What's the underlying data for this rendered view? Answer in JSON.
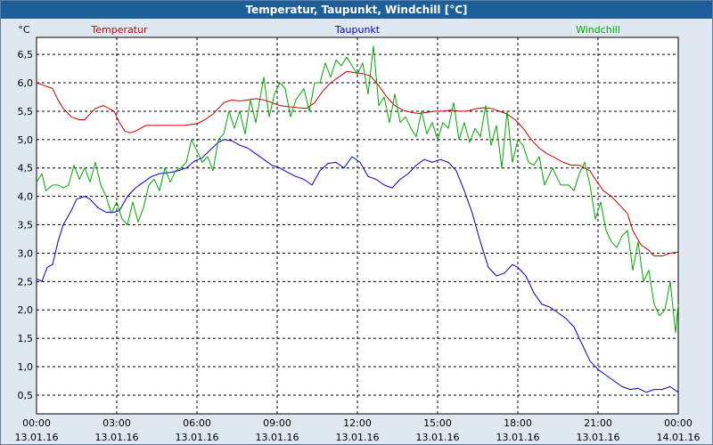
{
  "window": {
    "title": "Temperatur, Taupunkt, Windchill [°C]"
  },
  "chart_data": {
    "type": "line",
    "title": "Temperatur, Taupunkt, Windchill [°C]",
    "ylabel": "°C",
    "ylim": [
      0.17,
      6.8
    ],
    "yticks": [
      0.5,
      1.0,
      1.5,
      2.0,
      2.5,
      3.0,
      3.5,
      4.0,
      4.5,
      5.0,
      5.5,
      6.0,
      6.5
    ],
    "ytick_labels": [
      "0,5",
      "1,0",
      "1,5",
      "2,0",
      "2,5",
      "3,0",
      "3,5",
      "4,0",
      "4,5",
      "5,0",
      "5,5",
      "6,0",
      "6,5"
    ],
    "xlim": [
      0,
      24
    ],
    "xticks": [
      0,
      3,
      6,
      9,
      12,
      15,
      18,
      21,
      24
    ],
    "xtick_labels": [
      {
        "time": "00:00",
        "date": "13.01.16"
      },
      {
        "time": "03:00",
        "date": "13.01.16"
      },
      {
        "time": "06:00",
        "date": "13.01.16"
      },
      {
        "time": "09:00",
        "date": "13.01.16"
      },
      {
        "time": "12:00",
        "date": "13.01.16"
      },
      {
        "time": "15:00",
        "date": "13.01.16"
      },
      {
        "time": "18:00",
        "date": "13.01.16"
      },
      {
        "time": "21:00",
        "date": "13.01.16"
      },
      {
        "time": "00:00",
        "date": "14.01.16"
      }
    ],
    "grid": true,
    "legend_position": "top",
    "series": [
      {
        "name": "Temperatur",
        "color": "#cc0000",
        "points": [
          [
            0,
            6.0
          ],
          [
            0.3,
            5.95
          ],
          [
            0.6,
            5.9
          ],
          [
            0.8,
            5.7
          ],
          [
            1.0,
            5.55
          ],
          [
            1.3,
            5.4
          ],
          [
            1.6,
            5.35
          ],
          [
            1.8,
            5.35
          ],
          [
            2.0,
            5.45
          ],
          [
            2.2,
            5.55
          ],
          [
            2.5,
            5.6
          ],
          [
            2.7,
            5.55
          ],
          [
            2.9,
            5.5
          ],
          [
            3.1,
            5.3
          ],
          [
            3.3,
            5.15
          ],
          [
            3.5,
            5.12
          ],
          [
            3.7,
            5.15
          ],
          [
            3.9,
            5.2
          ],
          [
            4.1,
            5.25
          ],
          [
            4.5,
            5.25
          ],
          [
            5.0,
            5.25
          ],
          [
            5.5,
            5.25
          ],
          [
            6.0,
            5.28
          ],
          [
            6.3,
            5.35
          ],
          [
            6.6,
            5.45
          ],
          [
            6.8,
            5.55
          ],
          [
            7.0,
            5.65
          ],
          [
            7.3,
            5.7
          ],
          [
            7.6,
            5.68
          ],
          [
            7.9,
            5.7
          ],
          [
            8.2,
            5.72
          ],
          [
            8.5,
            5.7
          ],
          [
            8.8,
            5.65
          ],
          [
            9.1,
            5.6
          ],
          [
            9.4,
            5.58
          ],
          [
            9.8,
            5.56
          ],
          [
            10.1,
            5.55
          ],
          [
            10.4,
            5.65
          ],
          [
            10.7,
            5.85
          ],
          [
            11.0,
            6.0
          ],
          [
            11.3,
            6.1
          ],
          [
            11.6,
            6.2
          ],
          [
            11.9,
            6.18
          ],
          [
            12.2,
            6.16
          ],
          [
            12.5,
            6.12
          ],
          [
            12.8,
            5.95
          ],
          [
            13.1,
            5.75
          ],
          [
            13.4,
            5.6
          ],
          [
            13.7,
            5.52
          ],
          [
            14.0,
            5.48
          ],
          [
            14.3,
            5.46
          ],
          [
            14.6,
            5.48
          ],
          [
            14.9,
            5.5
          ],
          [
            15.2,
            5.5
          ],
          [
            15.5,
            5.52
          ],
          [
            15.8,
            5.5
          ],
          [
            16.1,
            5.5
          ],
          [
            16.4,
            5.54
          ],
          [
            16.7,
            5.56
          ],
          [
            17.0,
            5.55
          ],
          [
            17.3,
            5.5
          ],
          [
            17.6,
            5.45
          ],
          [
            17.9,
            5.35
          ],
          [
            18.2,
            5.2
          ],
          [
            18.5,
            5.0
          ],
          [
            18.8,
            4.85
          ],
          [
            19.1,
            4.75
          ],
          [
            19.4,
            4.68
          ],
          [
            19.7,
            4.6
          ],
          [
            20.0,
            4.55
          ],
          [
            20.3,
            4.55
          ],
          [
            20.5,
            4.5
          ],
          [
            20.7,
            4.45
          ],
          [
            20.9,
            4.3
          ],
          [
            21.2,
            4.1
          ],
          [
            21.5,
            4.0
          ],
          [
            21.8,
            3.85
          ],
          [
            22.1,
            3.7
          ],
          [
            22.3,
            3.4
          ],
          [
            22.6,
            3.15
          ],
          [
            22.9,
            3.05
          ],
          [
            23.1,
            2.95
          ],
          [
            23.4,
            2.95
          ],
          [
            23.7,
            3.0
          ],
          [
            24.0,
            3.02
          ]
        ]
      },
      {
        "name": "Taupunkt",
        "color": "#0000cc",
        "points": [
          [
            0,
            2.55
          ],
          [
            0.2,
            2.5
          ],
          [
            0.4,
            2.75
          ],
          [
            0.6,
            2.8
          ],
          [
            0.8,
            3.2
          ],
          [
            1.0,
            3.5
          ],
          [
            1.3,
            3.75
          ],
          [
            1.5,
            3.95
          ],
          [
            1.8,
            4.0
          ],
          [
            2.0,
            3.95
          ],
          [
            2.3,
            3.8
          ],
          [
            2.6,
            3.72
          ],
          [
            2.9,
            3.72
          ],
          [
            3.1,
            3.75
          ],
          [
            3.4,
            4.0
          ],
          [
            3.7,
            4.15
          ],
          [
            4.0,
            4.25
          ],
          [
            4.3,
            4.35
          ],
          [
            4.6,
            4.4
          ],
          [
            5.0,
            4.42
          ],
          [
            5.3,
            4.45
          ],
          [
            5.6,
            4.5
          ],
          [
            5.9,
            4.62
          ],
          [
            6.2,
            4.68
          ],
          [
            6.5,
            4.82
          ],
          [
            6.8,
            4.95
          ],
          [
            7.0,
            5.0
          ],
          [
            7.3,
            4.98
          ],
          [
            7.6,
            4.9
          ],
          [
            7.9,
            4.85
          ],
          [
            8.2,
            4.75
          ],
          [
            8.5,
            4.65
          ],
          [
            8.8,
            4.55
          ],
          [
            9.1,
            4.5
          ],
          [
            9.4,
            4.42
          ],
          [
            9.7,
            4.35
          ],
          [
            10.0,
            4.3
          ],
          [
            10.3,
            4.2
          ],
          [
            10.6,
            4.45
          ],
          [
            10.9,
            4.58
          ],
          [
            11.2,
            4.6
          ],
          [
            11.5,
            4.5
          ],
          [
            11.8,
            4.7
          ],
          [
            12.1,
            4.6
          ],
          [
            12.4,
            4.35
          ],
          [
            12.7,
            4.3
          ],
          [
            13.0,
            4.2
          ],
          [
            13.3,
            4.15
          ],
          [
            13.6,
            4.3
          ],
          [
            13.9,
            4.4
          ],
          [
            14.2,
            4.55
          ],
          [
            14.5,
            4.65
          ],
          [
            14.8,
            4.6
          ],
          [
            15.1,
            4.65
          ],
          [
            15.4,
            4.6
          ],
          [
            15.7,
            4.45
          ],
          [
            16.0,
            4.1
          ],
          [
            16.3,
            3.7
          ],
          [
            16.6,
            3.2
          ],
          [
            16.9,
            2.75
          ],
          [
            17.2,
            2.6
          ],
          [
            17.5,
            2.65
          ],
          [
            17.8,
            2.8
          ],
          [
            18.0,
            2.75
          ],
          [
            18.3,
            2.6
          ],
          [
            18.6,
            2.3
          ],
          [
            18.9,
            2.1
          ],
          [
            19.2,
            2.05
          ],
          [
            19.5,
            1.95
          ],
          [
            19.8,
            1.85
          ],
          [
            20.1,
            1.7
          ],
          [
            20.4,
            1.4
          ],
          [
            20.7,
            1.1
          ],
          [
            21.0,
            0.95
          ],
          [
            21.3,
            0.85
          ],
          [
            21.6,
            0.75
          ],
          [
            21.9,
            0.65
          ],
          [
            22.2,
            0.6
          ],
          [
            22.5,
            0.62
          ],
          [
            22.8,
            0.55
          ],
          [
            23.1,
            0.6
          ],
          [
            23.4,
            0.6
          ],
          [
            23.7,
            0.65
          ],
          [
            24.0,
            0.55
          ]
        ]
      },
      {
        "name": "Windchill",
        "color": "#00aa00",
        "points": [
          [
            0,
            4.25
          ],
          [
            0.2,
            4.4
          ],
          [
            0.35,
            4.1
          ],
          [
            0.6,
            4.2
          ],
          [
            0.8,
            4.2
          ],
          [
            1.0,
            4.15
          ],
          [
            1.2,
            4.2
          ],
          [
            1.4,
            4.55
          ],
          [
            1.6,
            4.3
          ],
          [
            1.8,
            4.5
          ],
          [
            2.0,
            4.25
          ],
          [
            2.2,
            4.6
          ],
          [
            2.4,
            4.2
          ],
          [
            2.6,
            4.0
          ],
          [
            2.8,
            3.7
          ],
          [
            3.0,
            3.9
          ],
          [
            3.2,
            3.6
          ],
          [
            3.4,
            3.5
          ],
          [
            3.6,
            3.9
          ],
          [
            3.8,
            3.55
          ],
          [
            4.0,
            3.8
          ],
          [
            4.2,
            4.2
          ],
          [
            4.4,
            4.3
          ],
          [
            4.6,
            4.1
          ],
          [
            4.8,
            4.5
          ],
          [
            5.0,
            4.25
          ],
          [
            5.2,
            4.45
          ],
          [
            5.4,
            4.5
          ],
          [
            5.6,
            4.6
          ],
          [
            5.8,
            5.0
          ],
          [
            6.0,
            4.8
          ],
          [
            6.2,
            4.6
          ],
          [
            6.4,
            4.7
          ],
          [
            6.6,
            4.45
          ],
          [
            6.8,
            5.0
          ],
          [
            7.0,
            5.1
          ],
          [
            7.2,
            5.5
          ],
          [
            7.4,
            5.2
          ],
          [
            7.6,
            5.5
          ],
          [
            7.8,
            5.1
          ],
          [
            8.0,
            5.7
          ],
          [
            8.2,
            5.3
          ],
          [
            8.5,
            6.1
          ],
          [
            8.7,
            5.4
          ],
          [
            8.9,
            5.8
          ],
          [
            9.1,
            6.0
          ],
          [
            9.3,
            5.9
          ],
          [
            9.5,
            5.4
          ],
          [
            9.7,
            5.7
          ],
          [
            10.0,
            5.9
          ],
          [
            10.2,
            5.5
          ],
          [
            10.4,
            6.0
          ],
          [
            10.6,
            6.0
          ],
          [
            10.8,
            6.35
          ],
          [
            11.0,
            6.1
          ],
          [
            11.2,
            6.4
          ],
          [
            11.4,
            6.3
          ],
          [
            11.6,
            6.45
          ],
          [
            11.8,
            6.3
          ],
          [
            12.0,
            6.15
          ],
          [
            12.2,
            6.35
          ],
          [
            12.4,
            5.8
          ],
          [
            12.6,
            6.65
          ],
          [
            12.8,
            5.6
          ],
          [
            13.0,
            5.75
          ],
          [
            13.2,
            5.3
          ],
          [
            13.4,
            5.8
          ],
          [
            13.6,
            5.3
          ],
          [
            13.8,
            5.4
          ],
          [
            14.0,
            5.2
          ],
          [
            14.2,
            5.05
          ],
          [
            14.4,
            5.5
          ],
          [
            14.6,
            5.1
          ],
          [
            14.8,
            5.3
          ],
          [
            15.0,
            5.0
          ],
          [
            15.2,
            5.3
          ],
          [
            15.4,
            5.2
          ],
          [
            15.6,
            5.65
          ],
          [
            15.8,
            5.0
          ],
          [
            16.0,
            5.3
          ],
          [
            16.2,
            4.95
          ],
          [
            16.4,
            5.2
          ],
          [
            16.6,
            5.05
          ],
          [
            16.8,
            5.6
          ],
          [
            17.0,
            4.9
          ],
          [
            17.2,
            5.25
          ],
          [
            17.4,
            4.5
          ],
          [
            17.6,
            5.5
          ],
          [
            17.8,
            4.6
          ],
          [
            18.0,
            5.0
          ],
          [
            18.2,
            4.9
          ],
          [
            18.4,
            4.6
          ],
          [
            18.6,
            4.55
          ],
          [
            18.8,
            4.7
          ],
          [
            19.0,
            4.2
          ],
          [
            19.3,
            4.5
          ],
          [
            19.6,
            4.2
          ],
          [
            19.9,
            4.2
          ],
          [
            20.1,
            4.1
          ],
          [
            20.3,
            4.4
          ],
          [
            20.5,
            4.6
          ],
          [
            20.7,
            4.2
          ],
          [
            20.9,
            3.6
          ],
          [
            21.1,
            3.9
          ],
          [
            21.3,
            3.4
          ],
          [
            21.5,
            3.2
          ],
          [
            21.7,
            3.1
          ],
          [
            21.9,
            3.3
          ],
          [
            22.1,
            3.4
          ],
          [
            22.3,
            2.7
          ],
          [
            22.5,
            3.2
          ],
          [
            22.7,
            2.5
          ],
          [
            22.9,
            2.7
          ],
          [
            23.1,
            2.1
          ],
          [
            23.3,
            1.9
          ],
          [
            23.5,
            2.0
          ],
          [
            23.7,
            2.5
          ],
          [
            23.9,
            1.6
          ],
          [
            24.0,
            2.1
          ]
        ]
      }
    ]
  }
}
